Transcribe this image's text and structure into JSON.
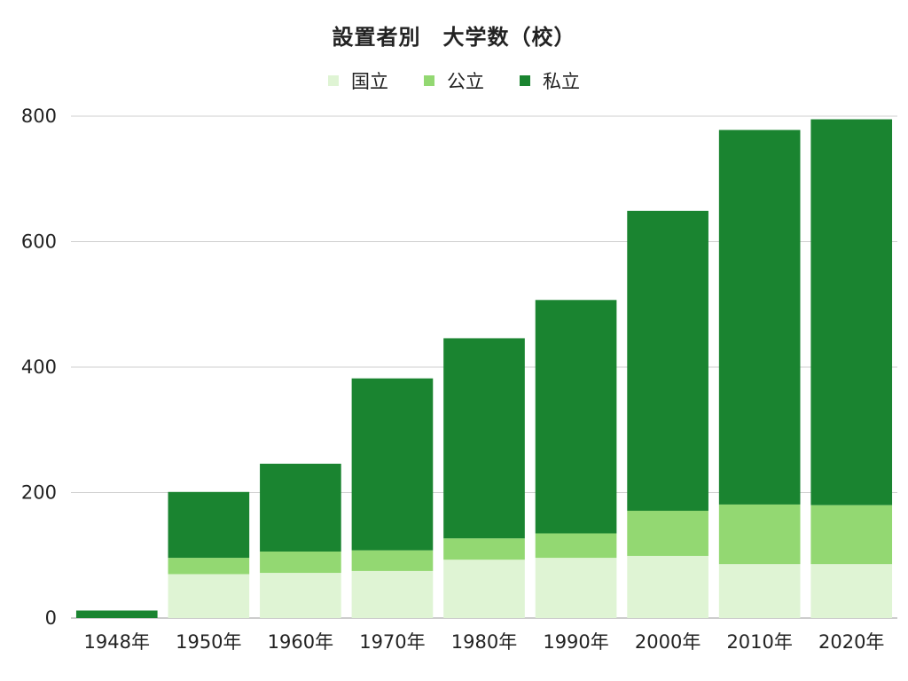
{
  "chart_data": {
    "type": "bar",
    "stacked": true,
    "title": "設置者別　大学数（校）",
    "categories": [
      "1948年",
      "1950年",
      "1960年",
      "1970年",
      "1980年",
      "1990年",
      "2000年",
      "2010年",
      "2020年"
    ],
    "series": [
      {
        "name": "国立",
        "color": "#dff4d4",
        "values": [
          0,
          70,
          72,
          75,
          93,
          96,
          99,
          86,
          86
        ]
      },
      {
        "name": "公立",
        "color": "#93d872",
        "values": [
          0,
          26,
          34,
          33,
          34,
          39,
          72,
          95,
          94
        ]
      },
      {
        "name": "私立",
        "color": "#1a8430",
        "values": [
          12,
          105,
          140,
          274,
          319,
          372,
          478,
          597,
          615
        ]
      }
    ],
    "ylim": [
      0,
      800
    ],
    "yticks": [
      0,
      200,
      400,
      600,
      800
    ],
    "grid": true,
    "legend_position": "top"
  }
}
